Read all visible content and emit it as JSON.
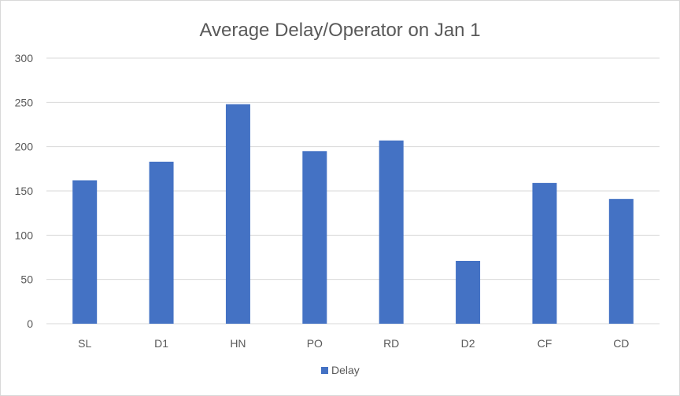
{
  "chart_data": {
    "type": "bar",
    "title": "Average Delay/Operator on Jan 1",
    "xlabel": "",
    "ylabel": "",
    "categories": [
      "SL",
      "D1",
      "HN",
      "PO",
      "RD",
      "D2",
      "CF",
      "CD"
    ],
    "series": [
      {
        "name": "Delay",
        "values": [
          162,
          183,
          248,
          195,
          207,
          71,
          159,
          141
        ],
        "color": "#4472c4"
      }
    ],
    "ylim": [
      0,
      300
    ],
    "yticks": [
      "0",
      "50",
      "100",
      "150",
      "200",
      "250",
      "300"
    ],
    "grid": true,
    "legend": "bottom"
  }
}
